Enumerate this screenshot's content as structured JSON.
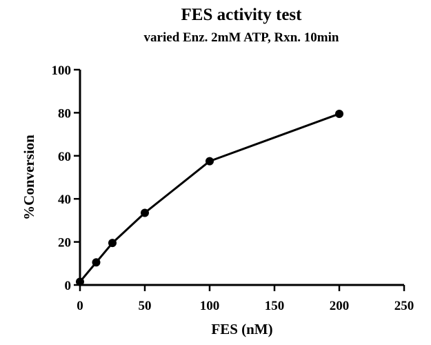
{
  "chart_data": {
    "type": "line",
    "title": "FES activity test",
    "subtitle": "varied Enz. 2mM ATP, Rxn. 10min",
    "xlabel": "FES (nM)",
    "ylabel": "%Conversion",
    "xlim": [
      0,
      250
    ],
    "ylim": [
      0,
      100
    ],
    "x_ticks": [
      0,
      50,
      100,
      150,
      200,
      250
    ],
    "y_ticks": [
      0,
      20,
      40,
      60,
      80,
      100
    ],
    "grid": false,
    "series": [
      {
        "x": [
          0,
          12.5,
          25,
          50,
          100,
          200
        ],
        "y": [
          1.5,
          10.5,
          19.5,
          33.5,
          57.5,
          79.5
        ]
      }
    ]
  }
}
